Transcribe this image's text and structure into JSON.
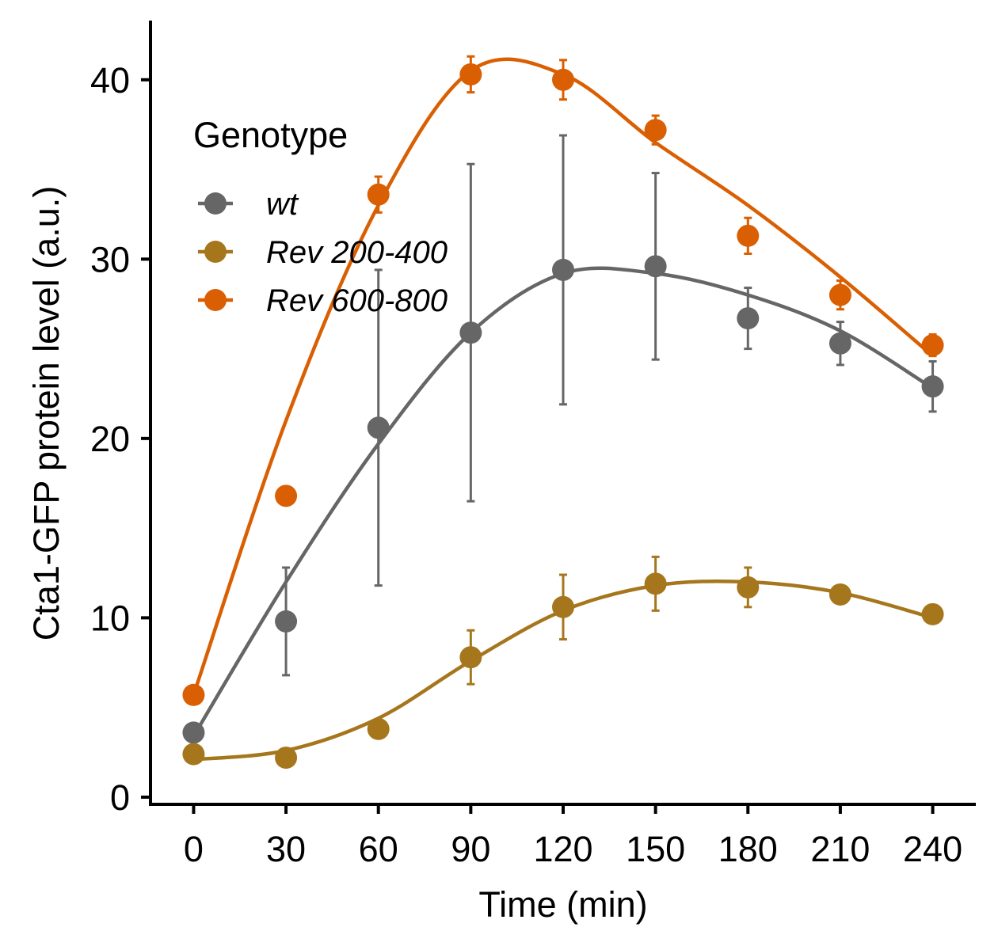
{
  "chart_data": {
    "type": "line",
    "title": "",
    "xlabel": "Time (min)",
    "ylabel": "Cta1-GFP protein level (a.u.)",
    "x": [
      0,
      30,
      60,
      90,
      120,
      150,
      180,
      210,
      240
    ],
    "xticks": [
      "0",
      "30",
      "60",
      "90",
      "120",
      "150",
      "180",
      "210",
      "240"
    ],
    "yticks": [
      "0",
      "10",
      "20",
      "30",
      "40"
    ],
    "ytick_values": [
      0,
      10,
      20,
      30,
      40
    ],
    "xlim": [
      -14,
      254
    ],
    "ylim": [
      -0.4,
      43.3
    ],
    "grid": false,
    "legend": {
      "title": "Genotype",
      "position": "top-left"
    },
    "series": [
      {
        "name": "wt",
        "color": "#666666",
        "values": [
          3.6,
          9.8,
          20.6,
          25.9,
          29.4,
          29.6,
          26.7,
          25.3,
          22.9
        ],
        "error": [
          0.4,
          3.0,
          8.8,
          9.4,
          7.5,
          5.2,
          1.7,
          1.2,
          1.4
        ],
        "fit": [
          3.4,
          12.0,
          19.7,
          25.9,
          29.2,
          29.2,
          28.0,
          26.0,
          22.8
        ]
      },
      {
        "name": "Rev 200-400",
        "color": "#A6761D",
        "values": [
          2.4,
          2.2,
          3.8,
          7.8,
          10.6,
          11.9,
          11.7,
          11.3,
          10.2
        ],
        "error": [
          0.5,
          0.3,
          0.5,
          1.5,
          1.8,
          1.5,
          1.1,
          0.4,
          0.3
        ],
        "fit": [
          2.1,
          2.6,
          4.4,
          7.6,
          10.4,
          11.8,
          12.0,
          11.4,
          10.0
        ]
      },
      {
        "name": "Rev 600-800",
        "color": "#D95F02",
        "values": [
          5.7,
          16.8,
          33.6,
          40.3,
          40.0,
          37.2,
          31.3,
          28.0,
          25.2
        ],
        "error": [
          0.4,
          0.3,
          1.0,
          1.0,
          1.1,
          0.8,
          1.0,
          0.8,
          0.6
        ],
        "fit": [
          5.7,
          21.0,
          33.0,
          40.5,
          40.3,
          36.5,
          33.0,
          29.0,
          24.6
        ]
      }
    ]
  }
}
